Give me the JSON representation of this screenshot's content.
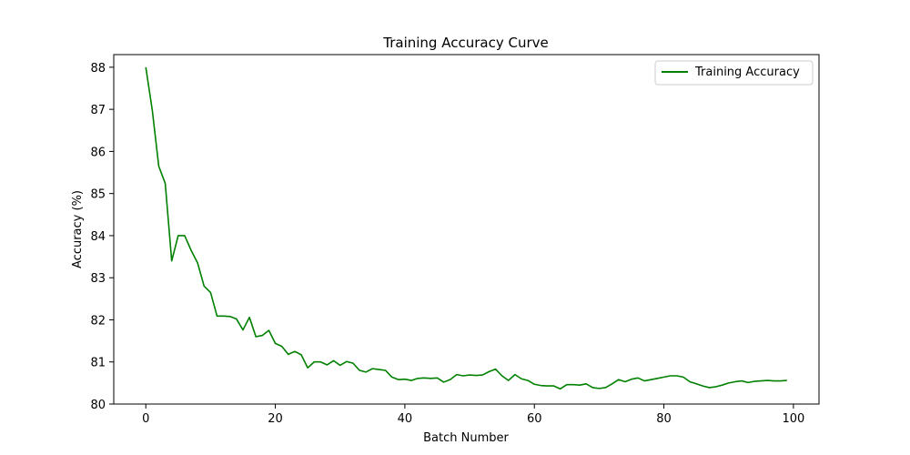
{
  "chart_data": {
    "type": "line",
    "title": "Training Accuracy Curve",
    "xlabel": "Batch Number",
    "ylabel": "Accuracy (%)",
    "xlim": [
      -4.95,
      103.95
    ],
    "ylim": [
      80,
      88.3
    ],
    "xticks": [
      0,
      20,
      40,
      60,
      80,
      100
    ],
    "yticks": [
      80,
      81,
      82,
      83,
      84,
      85,
      86,
      87,
      88
    ],
    "grid": false,
    "legend": {
      "placement": "top-right"
    },
    "series": [
      {
        "name": "Training Accuracy",
        "color": "#008000",
        "x": [
          0,
          1,
          2,
          3,
          4,
          5,
          6,
          7,
          8,
          9,
          10,
          11,
          12,
          13,
          14,
          15,
          16,
          17,
          18,
          19,
          20,
          21,
          22,
          23,
          24,
          25,
          26,
          27,
          28,
          29,
          30,
          31,
          32,
          33,
          34,
          35,
          36,
          37,
          38,
          39,
          40,
          41,
          42,
          43,
          44,
          45,
          46,
          47,
          48,
          49,
          50,
          51,
          52,
          53,
          54,
          55,
          56,
          57,
          58,
          59,
          60,
          61,
          62,
          63,
          64,
          65,
          66,
          67,
          68,
          69,
          70,
          71,
          72,
          73,
          74,
          75,
          76,
          77,
          78,
          79,
          80,
          81,
          82,
          83,
          84,
          85,
          86,
          87,
          88,
          89,
          90,
          91,
          92,
          93,
          94,
          95,
          96,
          97,
          98,
          99
        ],
        "y": [
          88.0,
          86.98,
          85.65,
          85.24,
          83.4,
          84.0,
          84.0,
          83.65,
          83.35,
          82.8,
          82.65,
          82.09,
          82.09,
          82.08,
          82.02,
          81.76,
          82.06,
          81.6,
          81.63,
          81.75,
          81.44,
          81.37,
          81.18,
          81.25,
          81.17,
          80.86,
          81.0,
          81.0,
          80.93,
          81.03,
          80.92,
          81.01,
          80.97,
          80.8,
          80.76,
          80.84,
          80.82,
          80.8,
          80.64,
          80.58,
          80.59,
          80.56,
          80.61,
          80.62,
          80.61,
          80.62,
          80.52,
          80.58,
          80.7,
          80.67,
          80.69,
          80.68,
          80.69,
          80.77,
          80.83,
          80.67,
          80.56,
          80.7,
          80.6,
          80.56,
          80.47,
          80.44,
          80.43,
          80.43,
          80.36,
          80.46,
          80.46,
          80.45,
          80.48,
          80.39,
          80.37,
          80.39,
          80.48,
          80.58,
          80.53,
          80.59,
          80.62,
          80.55,
          80.58,
          80.61,
          80.64,
          80.67,
          80.67,
          80.64,
          80.53,
          80.48,
          80.43,
          80.39,
          80.41,
          80.45,
          80.5,
          80.53,
          80.55,
          80.51,
          80.54,
          80.55,
          80.56,
          80.55,
          80.55,
          80.56
        ]
      }
    ]
  }
}
